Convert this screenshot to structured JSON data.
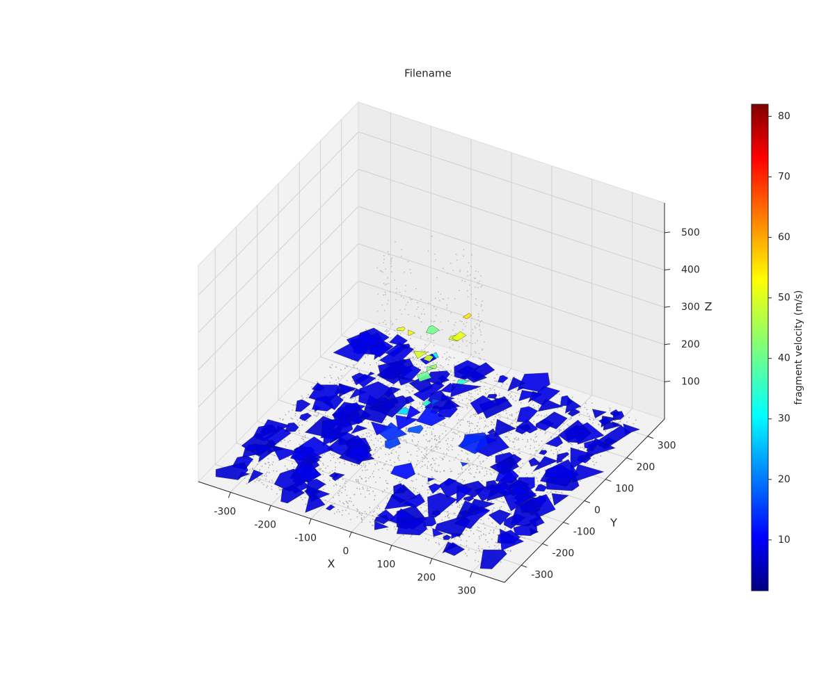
{
  "chart_data": {
    "type": "scatter3d",
    "title": "Filename",
    "xlabel": "X",
    "ylabel": "Y",
    "zlabel": "Z",
    "xlim": [
      -380,
      380
    ],
    "ylim": [
      -380,
      380
    ],
    "zlim": [
      0,
      580
    ],
    "xticks": [
      -300,
      -200,
      -100,
      0,
      100,
      200,
      300
    ],
    "yticks": [
      -300,
      -200,
      -100,
      0,
      100,
      200,
      300
    ],
    "zticks": [
      100,
      200,
      300,
      400,
      500
    ],
    "grid": true,
    "colorbar": {
      "label": "fragment velocity (m/s)",
      "colormap": "jet",
      "lim": [
        1.6,
        82
      ],
      "ticks": [
        10,
        20,
        30,
        40,
        50,
        60,
        70,
        80
      ]
    }
  }
}
